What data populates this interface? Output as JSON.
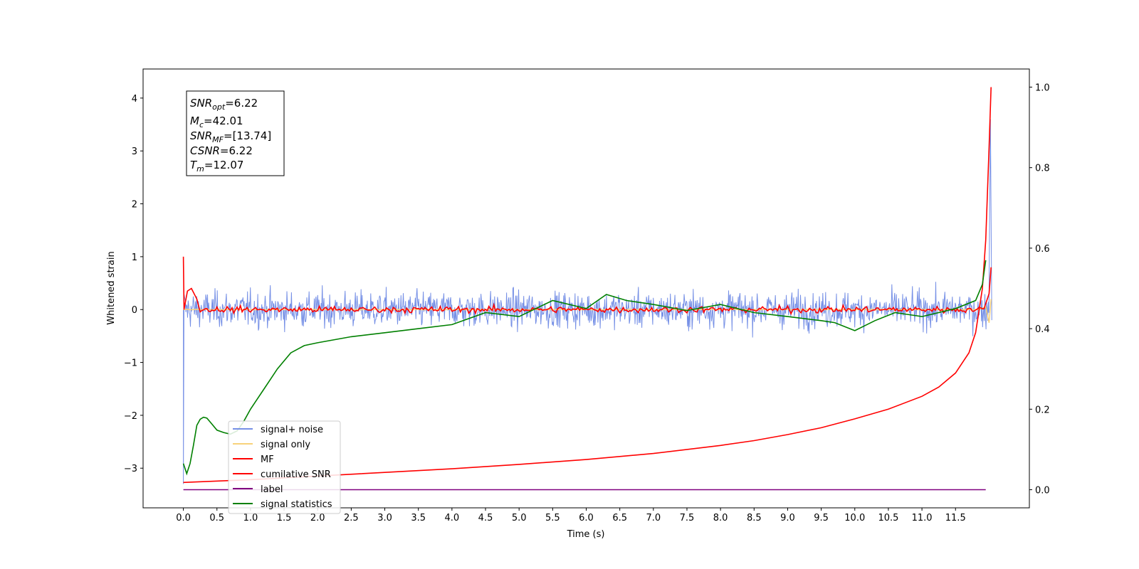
{
  "chart_data": {
    "type": "line",
    "xlabel": "Time (s)",
    "ylabel": "Whitened strain",
    "xlim": [
      -0.6,
      12.6
    ],
    "ylim": [
      -3.75,
      4.55
    ],
    "y2lim": [
      -0.045,
      1.045
    ],
    "xticks": [
      "0.0",
      "0.5",
      "1.0",
      "1.5",
      "2.0",
      "2.5",
      "3.0",
      "3.5",
      "4.0",
      "4.5",
      "5.0",
      "5.5",
      "6.0",
      "6.5",
      "7.0",
      "7.5",
      "8.0",
      "8.5",
      "9.0",
      "9.5",
      "10.0",
      "10.5",
      "11.0",
      "11.5"
    ],
    "yticks": [
      "4",
      "3",
      "2",
      "1",
      "0",
      "−1",
      "−2",
      "−3"
    ],
    "y2ticks": [
      "1.0",
      "0.8",
      "0.6",
      "0.4",
      "0.2",
      "0.0"
    ],
    "annotation": {
      "snr_opt": {
        "sym": "SNR",
        "sub": "opt",
        "rest": "=6.22"
      },
      "mc": {
        "sym": "M",
        "sub": "c",
        "rest": "=42.01"
      },
      "snr_mf": {
        "sym": "SNR",
        "sub": "MF",
        "rest": "=[13.74]"
      },
      "csnr": {
        "sym": "CSNR",
        "sub": "",
        "rest": "=6.22"
      },
      "tm": {
        "sym": "T",
        "sub": "m",
        "rest": "=12.07"
      }
    },
    "legend_position": "lower-left",
    "series": [
      {
        "name": "signal+ noise",
        "color": "#7690e6",
        "axis": "left",
        "description_amplitude": 0.6
      },
      {
        "name": "signal only",
        "color": "#f8d27a",
        "axis": "left"
      },
      {
        "name": "MF",
        "color": "#ff0000",
        "axis": "left"
      },
      {
        "name": "cumilative SNR",
        "color": "#ff0000",
        "axis": "right",
        "x": [
          0.0,
          1.0,
          2.0,
          3.0,
          4.0,
          5.0,
          6.0,
          7.0,
          8.0,
          8.5,
          9.0,
          9.5,
          10.0,
          10.5,
          11.0,
          11.25,
          11.5,
          11.7,
          11.8,
          11.9,
          11.95,
          12.0,
          12.03
        ],
        "y": [
          0.018,
          0.025,
          0.034,
          0.043,
          0.052,
          0.063,
          0.075,
          0.09,
          0.11,
          0.122,
          0.137,
          0.154,
          0.176,
          0.2,
          0.232,
          0.255,
          0.29,
          0.34,
          0.39,
          0.5,
          0.62,
          0.85,
          1.0
        ]
      },
      {
        "name": "label",
        "color": "#800080",
        "axis": "right",
        "x": [
          0.0,
          11.95
        ],
        "y": [
          0.0,
          0.0
        ]
      },
      {
        "name": "signal statistics",
        "color": "#008000",
        "axis": "right",
        "x": [
          0.0,
          0.05,
          0.1,
          0.15,
          0.2,
          0.25,
          0.3,
          0.35,
          0.4,
          0.5,
          0.6,
          0.7,
          0.8,
          0.9,
          1.0,
          1.1,
          1.2,
          1.4,
          1.6,
          1.8,
          2.0,
          2.5,
          3.0,
          3.5,
          4.0,
          4.5,
          5.0,
          5.5,
          6.0,
          6.3,
          6.6,
          7.0,
          7.5,
          8.0,
          8.5,
          9.0,
          9.5,
          9.7,
          10.0,
          10.3,
          10.6,
          11.0,
          11.5,
          11.8,
          11.9,
          11.95
        ],
        "y": [
          0.065,
          0.04,
          0.065,
          0.11,
          0.16,
          0.175,
          0.18,
          0.178,
          0.168,
          0.148,
          0.142,
          0.138,
          0.146,
          0.17,
          0.2,
          0.225,
          0.25,
          0.3,
          0.34,
          0.358,
          0.365,
          0.38,
          0.39,
          0.4,
          0.41,
          0.44,
          0.43,
          0.47,
          0.45,
          0.485,
          0.47,
          0.46,
          0.445,
          0.46,
          0.44,
          0.43,
          0.42,
          0.415,
          0.395,
          0.42,
          0.44,
          0.43,
          0.45,
          0.47,
          0.51,
          0.57
        ]
      }
    ]
  }
}
